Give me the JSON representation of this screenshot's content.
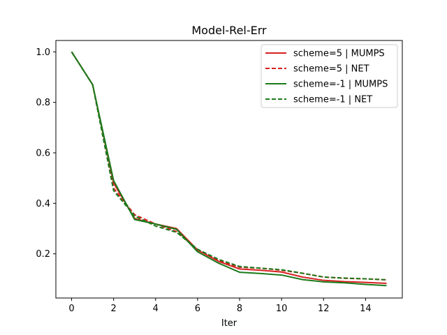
{
  "chart_data": {
    "type": "line",
    "title": "Model-Rel-Err",
    "xlabel": "Iter",
    "ylabel": "",
    "xlim": [
      -0.75,
      15.75
    ],
    "ylim": [
      0.025,
      1.045
    ],
    "xticks": [
      0,
      2,
      4,
      6,
      8,
      10,
      12,
      14
    ],
    "yticks": [
      0.2,
      0.4,
      0.6,
      0.8,
      1.0
    ],
    "ytick_labels": [
      "0.2",
      "0.4",
      "0.6",
      "0.8",
      "1.0"
    ],
    "grid": false,
    "legend_position": "top-right",
    "x": [
      0,
      1,
      2,
      3,
      4,
      5,
      6,
      7,
      8,
      9,
      10,
      11,
      12,
      13,
      14,
      15
    ],
    "series": [
      {
        "name": "scheme=5 | MUMPS",
        "color": "#d62020",
        "style": "solid",
        "values": [
          1.0,
          0.87,
          0.48,
          0.34,
          0.318,
          0.3,
          0.215,
          0.17,
          0.14,
          0.135,
          0.128,
          0.108,
          0.095,
          0.09,
          0.087,
          0.083
        ]
      },
      {
        "name": "scheme=5 | NET",
        "color": "#d62020",
        "style": "dashed",
        "values": [
          1.0,
          0.87,
          0.46,
          0.355,
          0.318,
          0.288,
          0.215,
          0.173,
          0.147,
          0.143,
          0.135,
          0.123,
          0.108,
          0.103,
          0.101,
          0.097
        ]
      },
      {
        "name": "scheme=-1 | MUMPS",
        "color": "#1a7a1a",
        "style": "solid",
        "values": [
          1.0,
          0.87,
          0.49,
          0.336,
          0.318,
          0.297,
          0.208,
          0.163,
          0.127,
          0.122,
          0.116,
          0.098,
          0.089,
          0.085,
          0.079,
          0.074
        ]
      },
      {
        "name": "scheme=-1 | NET",
        "color": "#1a7a1a",
        "style": "dashed",
        "values": [
          1.0,
          0.87,
          0.45,
          0.35,
          0.31,
          0.285,
          0.218,
          0.178,
          0.15,
          0.143,
          0.137,
          0.123,
          0.108,
          0.104,
          0.101,
          0.097
        ]
      }
    ]
  }
}
